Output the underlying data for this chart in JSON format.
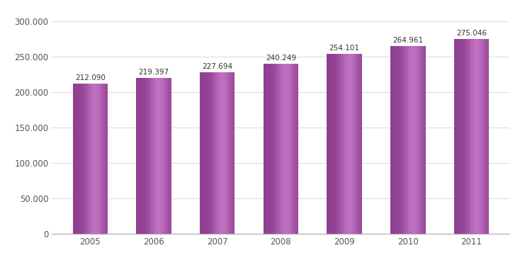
{
  "categories": [
    "2005",
    "2006",
    "2007",
    "2008",
    "2009",
    "2010",
    "2011"
  ],
  "values": [
    212090,
    219397,
    227694,
    240249,
    254101,
    264961,
    275046
  ],
  "labels": [
    "212.090",
    "219.397",
    "227.694",
    "240.249",
    "254.101",
    "264.961",
    "275.046"
  ],
  "bar_color_main": "#9B4F9B",
  "bar_color_light": "#C080C0",
  "bar_color_dark": "#7B2F7B",
  "background_color": "#ffffff",
  "ylim": [
    0,
    315000
  ],
  "yticks": [
    0,
    50000,
    100000,
    150000,
    200000,
    250000,
    300000
  ],
  "ytick_labels": [
    "0",
    "50.000",
    "100.000",
    "150.000",
    "200.000",
    "250.000",
    "300.000"
  ],
  "label_fontsize": 7.5,
  "tick_fontsize": 8.5,
  "grid_color": "#dddddd",
  "label_text_color": "#333333",
  "tick_text_color": "#555555",
  "bar_width": 0.55
}
